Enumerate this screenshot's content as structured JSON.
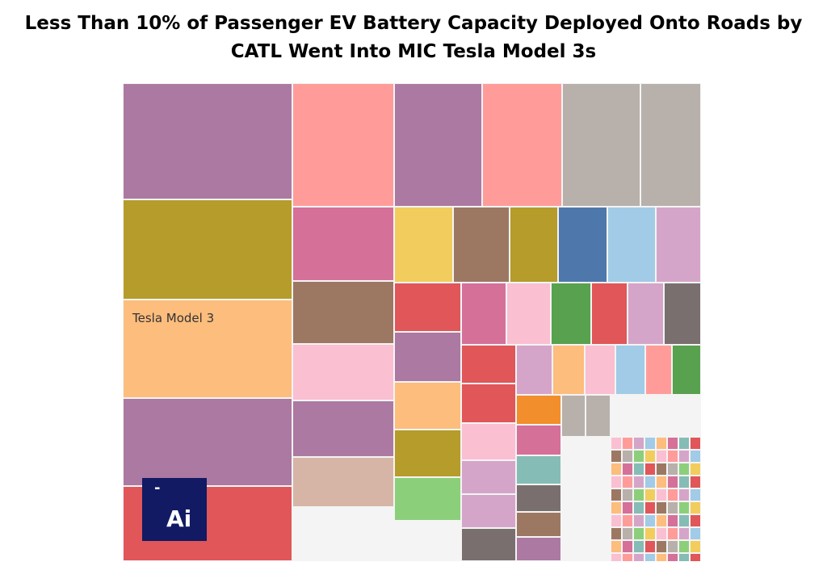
{
  "title_line1": "Less Than 10% of Passenger EV Battery Capacity Deployed Onto Roads by",
  "title_line2": "CATL Went Into MIC Tesla Model 3s",
  "logo": {
    "dash": "-",
    "text": "Ai"
  },
  "colors": {
    "purple": "#ac79a2",
    "salmon": "#ff9c9a",
    "gray": "#b8b0ab",
    "olive": "#b59c2b",
    "orange": "#fdbd7d",
    "red": "#e05659",
    "pink": "#d57099",
    "brown": "#9c7863",
    "blue": "#4e78ab",
    "lightblue": "#a1cbe6",
    "lilac": "#d5a5c9",
    "green": "#58a14e",
    "darkgray": "#7a6f6f",
    "lightpink": "#fbbfd2",
    "tan": "#d7b5a6",
    "yellow": "#f2cd5d",
    "lightgreen": "#8ccf7a",
    "teal": "#86bcb6",
    "orange2": "#f28e2b",
    "darkteal": "#499894",
    "navy": "#111a63"
  },
  "chart_data": {
    "type": "treemap",
    "title": "Less Than 10% of Passenger EV Battery Capacity Deployed Onto Roads by CATL Went Into MIC Tesla Model 3s",
    "unit": "relative share (estimated from area)",
    "highlighted_label": "Tesla Model 3",
    "cells": [
      {
        "label": "",
        "color": "purple",
        "value": 3.33
      },
      {
        "label": "",
        "color": "olive",
        "value": 2.95
      },
      {
        "label": "Tesla Model 3",
        "color": "orange",
        "value": 2.92
      },
      {
        "label": "",
        "color": "purple",
        "value": 2.64
      },
      {
        "label": "",
        "color": "red",
        "value": 2.14
      },
      {
        "label": "",
        "color": "salmon",
        "value": 1.86
      },
      {
        "label": "",
        "color": "purple",
        "value": 1.46
      },
      {
        "label": "",
        "color": "salmon",
        "value": 1.48
      },
      {
        "label": "",
        "color": "gray",
        "value": 1.44
      },
      {
        "label": "",
        "color": "gray",
        "value": 1.11
      },
      {
        "label": "",
        "color": "pink",
        "value": 1.28
      },
      {
        "label": "",
        "color": "brown",
        "value": 1.1
      },
      {
        "label": "",
        "color": "lightpink",
        "value": 1.03
      },
      {
        "label": "",
        "color": "purple",
        "value": 1.0
      },
      {
        "label": "",
        "color": "tan",
        "value": 0.96
      },
      {
        "label": "",
        "color": "yellow",
        "value": 0.88
      },
      {
        "label": "",
        "color": "brown",
        "value": 0.46
      },
      {
        "label": "",
        "color": "olive",
        "value": 0.44
      },
      {
        "label": "",
        "color": "blue",
        "value": 0.39
      },
      {
        "label": "",
        "color": "lightblue",
        "value": 0.41
      },
      {
        "label": "",
        "color": "lilac",
        "value": 0.41
      },
      {
        "label": "",
        "color": "red",
        "value": 0.38
      },
      {
        "label": "",
        "color": "purple",
        "value": 0.33
      },
      {
        "label": "",
        "color": "orange",
        "value": 0.34
      },
      {
        "label": "",
        "color": "olive",
        "value": 0.32
      },
      {
        "label": "",
        "color": "lightgreen",
        "value": 0.32
      },
      {
        "label": "",
        "color": "pink",
        "value": 0.31
      },
      {
        "label": "",
        "color": "lightpink",
        "value": 0.29
      },
      {
        "label": "",
        "color": "green",
        "value": 0.26
      },
      {
        "label": "",
        "color": "red",
        "value": 0.28
      },
      {
        "label": "",
        "color": "lilac",
        "value": 0.26
      },
      {
        "label": "",
        "color": "darkgray",
        "value": 0.26
      },
      {
        "label": "",
        "color": "red",
        "value": 0.25
      },
      {
        "label": "",
        "color": "red",
        "value": 0.25
      },
      {
        "label": "",
        "color": "lightpink",
        "value": 0.2
      },
      {
        "label": "",
        "color": "lilac",
        "value": 0.2
      },
      {
        "label": "",
        "color": "lilac",
        "value": 0.17
      },
      {
        "label": "",
        "color": "darkgray",
        "value": 0.16
      },
      {
        "label": "",
        "color": "lilac",
        "value": 0.17
      },
      {
        "label": "",
        "color": "orange",
        "value": 0.15
      },
      {
        "label": "",
        "color": "lightpink",
        "value": 0.14
      },
      {
        "label": "",
        "color": "lightblue",
        "value": 0.12
      },
      {
        "label": "",
        "color": "salmon",
        "value": 0.12
      },
      {
        "label": "",
        "color": "green",
        "value": 0.11
      },
      {
        "label": "",
        "color": "orange2",
        "value": 0.11
      },
      {
        "label": "",
        "color": "pink",
        "value": 0.11
      },
      {
        "label": "",
        "color": "teal",
        "value": 0.11
      },
      {
        "label": "",
        "color": "darkgray",
        "value": 0.11
      },
      {
        "label": "",
        "color": "brown",
        "value": 0.11
      },
      {
        "label": "",
        "color": "purple",
        "value": 0.1
      },
      {
        "label": "",
        "color": "gray",
        "value": 0.09
      },
      {
        "label": "",
        "color": "gray",
        "value": 0.07
      }
    ],
    "small_cells_count_note": ""
  }
}
